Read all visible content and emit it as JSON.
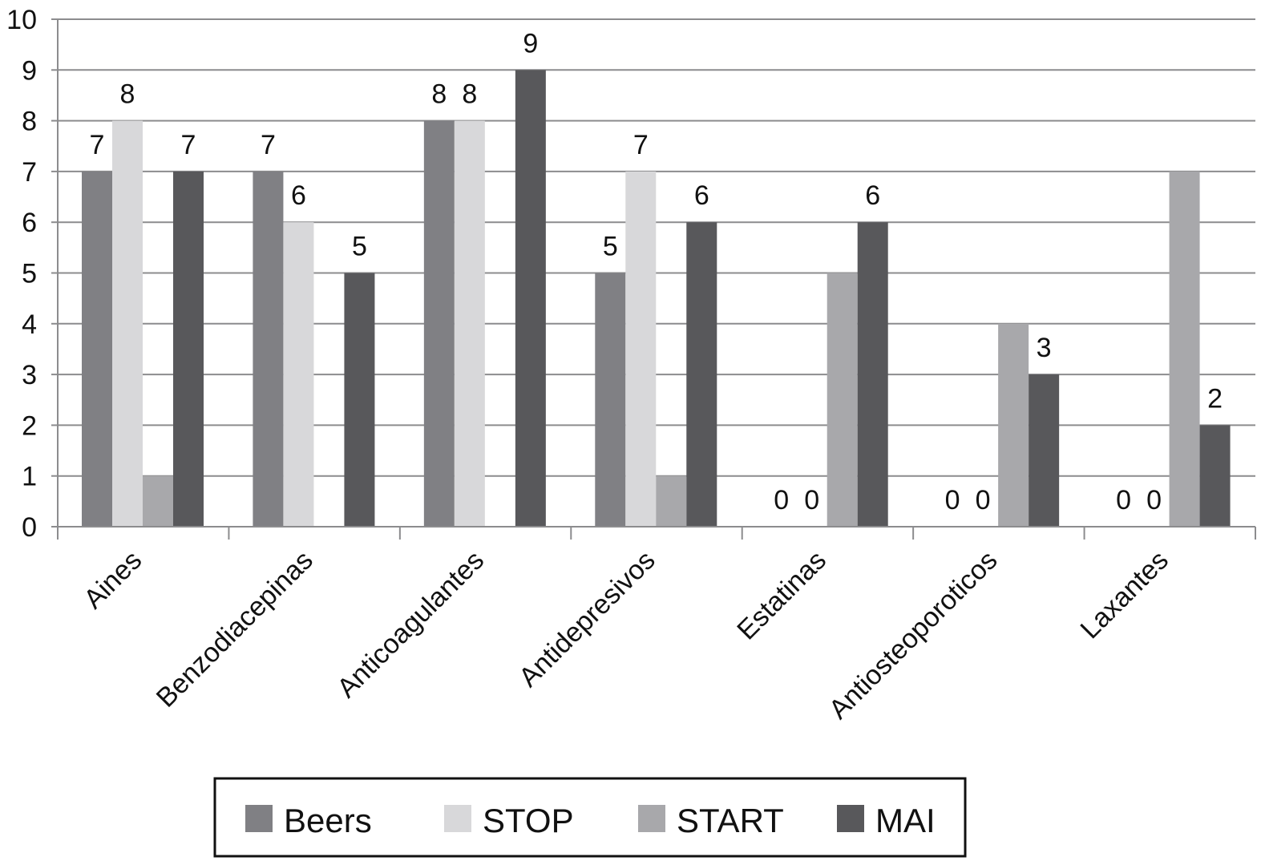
{
  "chart_data": {
    "type": "bar",
    "categories": [
      "Aines",
      "Benzodiacepinas",
      "Anticoagulantes",
      "Antidepresivos",
      "Estatinas",
      "Antiosteoporoticos",
      "Laxantes"
    ],
    "series": [
      {
        "name": "Beers",
        "color": "#808084",
        "values": [
          7,
          7,
          8,
          5,
          0,
          0,
          0
        ],
        "labels": [
          "7",
          "7",
          "8",
          "5",
          "0",
          "0",
          "0"
        ]
      },
      {
        "name": "STOP",
        "color": "#d8d8da",
        "values": [
          8,
          6,
          8,
          7,
          0,
          0,
          0
        ],
        "labels": [
          "8",
          "6",
          "8",
          "7",
          "0",
          "0",
          "0"
        ]
      },
      {
        "name": "START",
        "color": "#a8a8ab",
        "values": [
          1,
          0,
          0,
          1,
          5,
          4,
          7
        ],
        "labels": [
          "",
          "",
          "",
          "",
          "",
          "",
          ""
        ]
      },
      {
        "name": "MAI",
        "color": "#58585b",
        "values": [
          7,
          5,
          9,
          6,
          6,
          3,
          2
        ],
        "labels": [
          "7",
          "5",
          "9",
          "6",
          "6",
          "3",
          "2"
        ]
      }
    ],
    "ylim": [
      0,
      10
    ],
    "yticks": [
      0,
      1,
      2,
      3,
      4,
      5,
      6,
      7,
      8,
      9,
      10
    ],
    "grid": true,
    "legend_position": "bottom",
    "title": "",
    "xlabel": "",
    "ylabel": ""
  }
}
